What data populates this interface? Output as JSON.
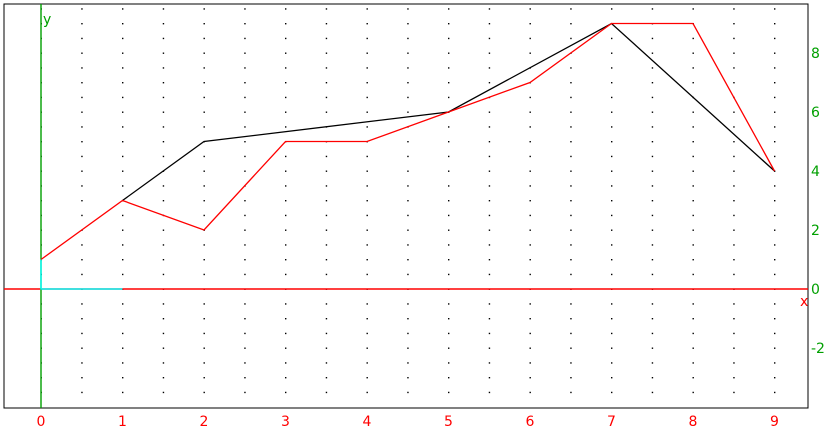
{
  "chart_data": {
    "type": "line",
    "xlabel": "x",
    "ylabel": "y",
    "xlim": [
      0,
      9.3
    ],
    "ylim": [
      -4,
      9.9
    ],
    "x_ticks": [
      "0",
      "1",
      "2",
      "3",
      "4",
      "5",
      "6",
      "7",
      "8",
      "9"
    ],
    "y_ticks": [
      "-2",
      "0",
      "2",
      "4",
      "6",
      "8"
    ],
    "grid": "dotted",
    "series": [
      {
        "color": "#000000",
        "x": [
          1,
          2,
          5,
          7,
          9
        ],
        "y": [
          3,
          5,
          6,
          9,
          4
        ]
      },
      {
        "color": "#ff0000",
        "x": [
          0,
          1,
          2,
          3,
          4,
          5,
          6,
          7,
          8,
          9
        ],
        "y": [
          1,
          3,
          2,
          5,
          5,
          6,
          7,
          9,
          9,
          4
        ]
      }
    ],
    "marker_color": "#00ffff",
    "marker": {
      "x": [
        0,
        0,
        1
      ],
      "y": [
        1,
        0,
        0
      ]
    },
    "colors": {
      "y_axis": "#00a000",
      "x_axis": "#ff0000",
      "x_tick_labels": "#ff0000",
      "y_tick_labels": "#00a000",
      "frame": "#000000"
    }
  }
}
